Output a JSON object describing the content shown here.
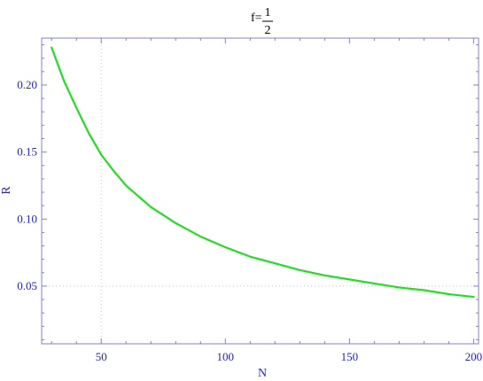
{
  "chart_data": {
    "type": "line",
    "title": {
      "prefix": "f=",
      "numerator": "1",
      "denominator": "2"
    },
    "xlabel": "N",
    "ylabel": "R",
    "xlim": [
      26,
      202
    ],
    "ylim": [
      0.007,
      0.235
    ],
    "x_ticks": [
      50,
      100,
      150,
      200
    ],
    "x_tick_labels": [
      "50",
      "100",
      "150",
      "200"
    ],
    "y_ticks": [
      0.05,
      0.1,
      0.15,
      0.2
    ],
    "y_tick_labels": [
      "0.05",
      "0.10",
      "0.15",
      "0.20"
    ],
    "grid": false,
    "reference_lines": {
      "x": 50,
      "y": 0.05
    },
    "series": [
      {
        "x": [
          30,
          35,
          40,
          45,
          50,
          55,
          60,
          70,
          80,
          90,
          100,
          110,
          120,
          130,
          140,
          150,
          160,
          170,
          180,
          190,
          200
        ],
        "values": [
          0.228,
          0.203,
          0.183,
          0.164,
          0.148,
          0.136,
          0.125,
          0.109,
          0.097,
          0.087,
          0.079,
          0.072,
          0.067,
          0.062,
          0.058,
          0.055,
          0.052,
          0.049,
          0.047,
          0.044,
          0.042
        ],
        "color": "#22dd22"
      }
    ],
    "colors": {
      "frame": "#8080d0",
      "tick_text": "#2323c8",
      "reference_line": "#c8c8c8"
    }
  }
}
